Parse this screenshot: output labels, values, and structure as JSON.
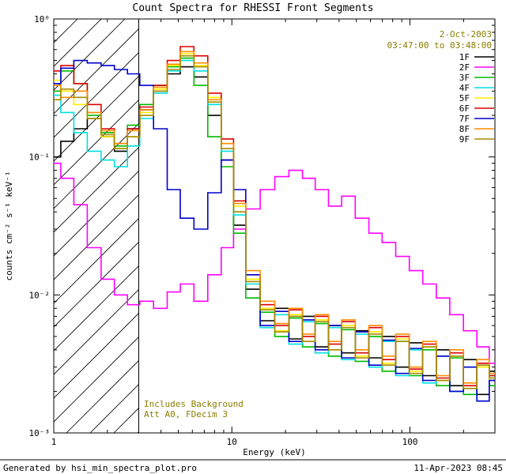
{
  "chart_data": {
    "type": "line",
    "scale": "log-log",
    "title": "Count Spectra for RHESSI Front Segments",
    "xlabel": "Energy (keV)",
    "ylabel": "counts cm⁻² s⁻¹ keV⁻¹",
    "xlim": [
      1,
      300
    ],
    "ylim": [
      0.001,
      1
    ],
    "grid": false,
    "hatch_region": {
      "x_start": 1,
      "x_end": 3
    },
    "x_ticks": [
      {
        "v": 1,
        "label": "1"
      },
      {
        "v": 10,
        "label": "10"
      },
      {
        "v": 100,
        "label": "100"
      }
    ],
    "y_ticks": [
      {
        "v": 1,
        "label": "10⁰"
      },
      {
        "v": 0.1,
        "label": "10⁻¹"
      },
      {
        "v": 0.01,
        "label": "10⁻²"
      },
      {
        "v": 0.001,
        "label": "10⁻³"
      }
    ],
    "legend": {
      "position": "top-right",
      "date": "2-Oct-2003",
      "time": "03:47:00 to 03:48:00"
    },
    "annotations": [
      "Includes Background",
      "Att A0, FDecim 3"
    ],
    "x": [
      1.0,
      1.2,
      1.4,
      1.7,
      2.0,
      2.4,
      2.8,
      3.3,
      4.0,
      4.7,
      5.6,
      6.7,
      8.0,
      9.5,
      11,
      13,
      16,
      19,
      23,
      27,
      32,
      38,
      45,
      54,
      64,
      76,
      91,
      108,
      129,
      153,
      183,
      218,
      259,
      300
    ],
    "series": [
      {
        "name": "1F",
        "color": "#000000",
        "values": [
          0.1,
          0.13,
          0.16,
          0.19,
          0.14,
          0.11,
          0.16,
          0.22,
          0.3,
          0.4,
          0.45,
          0.38,
          0.2,
          0.095,
          0.032,
          0.011,
          0.0065,
          0.008,
          0.0048,
          0.007,
          0.0042,
          0.006,
          0.0038,
          0.0055,
          0.0035,
          0.005,
          0.003,
          0.0045,
          0.0026,
          0.004,
          0.0022,
          0.0034,
          0.0019,
          0.0028
        ]
      },
      {
        "name": "2F",
        "color": "#ff00ff",
        "values": [
          0.09,
          0.07,
          0.045,
          0.022,
          0.013,
          0.01,
          0.0085,
          0.009,
          0.008,
          0.0105,
          0.012,
          0.009,
          0.014,
          0.022,
          0.03,
          0.042,
          0.058,
          0.072,
          0.08,
          0.07,
          0.058,
          0.044,
          0.052,
          0.036,
          0.028,
          0.024,
          0.019,
          0.015,
          0.012,
          0.0095,
          0.0072,
          0.0055,
          0.0042,
          0.0032
        ]
      },
      {
        "name": "3F",
        "color": "#00bb00",
        "values": [
          0.3,
          0.42,
          0.34,
          0.2,
          0.15,
          0.12,
          0.17,
          0.24,
          0.33,
          0.45,
          0.52,
          0.33,
          0.14,
          0.085,
          0.028,
          0.0095,
          0.0075,
          0.005,
          0.0068,
          0.0042,
          0.0062,
          0.0036,
          0.0056,
          0.0033,
          0.005,
          0.0028,
          0.0046,
          0.0026,
          0.004,
          0.0022,
          0.0035,
          0.0019,
          0.003,
          0.0022
        ]
      },
      {
        "name": "4F",
        "color": "#00e0e0",
        "values": [
          0.28,
          0.21,
          0.15,
          0.11,
          0.095,
          0.085,
          0.12,
          0.19,
          0.29,
          0.42,
          0.5,
          0.42,
          0.24,
          0.11,
          0.038,
          0.012,
          0.0058,
          0.0072,
          0.0044,
          0.0064,
          0.0038,
          0.0058,
          0.0034,
          0.0052,
          0.003,
          0.0046,
          0.0026,
          0.004,
          0.0023,
          0.0036,
          0.002,
          0.003,
          0.0017,
          0.0026
        ]
      },
      {
        "name": "5F",
        "color": "#ffee00",
        "values": [
          0.36,
          0.3,
          0.24,
          0.19,
          0.14,
          0.115,
          0.14,
          0.21,
          0.31,
          0.46,
          0.56,
          0.46,
          0.27,
          0.125,
          0.044,
          0.013,
          0.008,
          0.0055,
          0.0072,
          0.0046,
          0.0066,
          0.004,
          0.006,
          0.0036,
          0.0054,
          0.0032,
          0.0048,
          0.0028,
          0.0042,
          0.0024,
          0.0036,
          0.0021,
          0.003,
          0.0024
        ]
      },
      {
        "name": "6F",
        "color": "#dd0000",
        "values": [
          0.42,
          0.46,
          0.34,
          0.24,
          0.16,
          0.125,
          0.16,
          0.23,
          0.33,
          0.5,
          0.63,
          0.54,
          0.29,
          0.135,
          0.048,
          0.014,
          0.0085,
          0.006,
          0.0078,
          0.005,
          0.007,
          0.0044,
          0.0064,
          0.0038,
          0.0058,
          0.0034,
          0.005,
          0.0029,
          0.0044,
          0.0025,
          0.0038,
          0.0022,
          0.0032,
          0.0026
        ]
      },
      {
        "name": "7F",
        "color": "#0000cc",
        "values": [
          0.34,
          0.44,
          0.5,
          0.48,
          0.46,
          0.43,
          0.4,
          0.33,
          0.16,
          0.058,
          0.036,
          0.03,
          0.055,
          0.095,
          0.058,
          0.014,
          0.006,
          0.0076,
          0.0046,
          0.0066,
          0.004,
          0.006,
          0.0035,
          0.0054,
          0.0031,
          0.0047,
          0.0027,
          0.0041,
          0.0024,
          0.0036,
          0.002,
          0.003,
          0.0017,
          0.0024
        ]
      },
      {
        "name": "8F",
        "color": "#ff8c00",
        "values": [
          0.33,
          0.27,
          0.3,
          0.21,
          0.155,
          0.125,
          0.155,
          0.22,
          0.32,
          0.47,
          0.58,
          0.48,
          0.26,
          0.125,
          0.046,
          0.015,
          0.009,
          0.0062,
          0.008,
          0.0052,
          0.0072,
          0.0046,
          0.0066,
          0.004,
          0.006,
          0.0036,
          0.0052,
          0.003,
          0.0046,
          0.0026,
          0.004,
          0.0023,
          0.0034,
          0.0027
        ]
      },
      {
        "name": "9F",
        "color": "#a68a00",
        "values": [
          0.26,
          0.31,
          0.27,
          0.19,
          0.145,
          0.115,
          0.14,
          0.2,
          0.3,
          0.43,
          0.54,
          0.45,
          0.25,
          0.115,
          0.04,
          0.0125,
          0.0078,
          0.0054,
          0.007,
          0.0046,
          0.0064,
          0.004,
          0.0058,
          0.0035,
          0.0052,
          0.0031,
          0.0046,
          0.0027,
          0.0042,
          0.0024,
          0.0036,
          0.0021,
          0.0031,
          0.0025
        ]
      }
    ]
  },
  "footer": {
    "left": "Generated by hsi_min_spectra_plot.pro",
    "right": "11-Apr-2023 08:45"
  }
}
